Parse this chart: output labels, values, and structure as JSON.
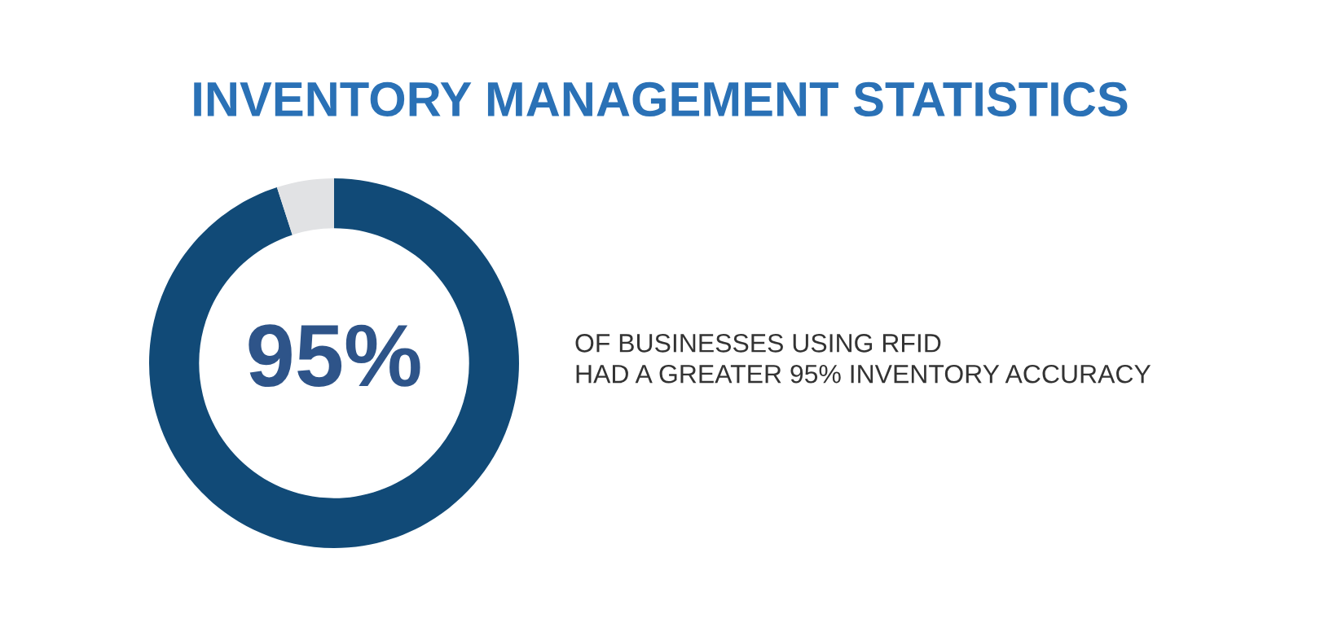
{
  "chart_data": {
    "type": "donut",
    "title": "INVENTORY MANAGEMENT STATISTICS",
    "categories": [
      null,
      null
    ],
    "values": [
      95,
      5
    ],
    "colors": [
      "#114a77",
      "#e1e2e4"
    ],
    "annotations": [
      "95%",
      "OF BUSINESSES USING RFID\nHAD A GREATER 95% INVENTORY ACCURACY"
    ]
  }
}
